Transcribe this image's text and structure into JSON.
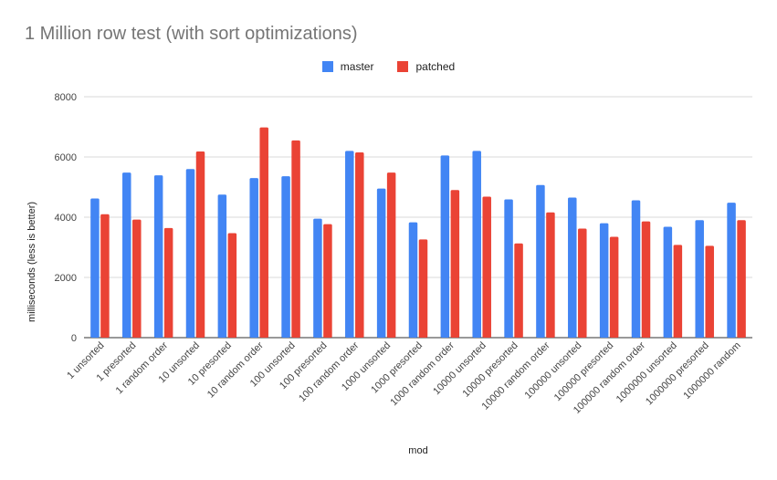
{
  "chart_data": {
    "type": "bar",
    "title": "1 Million row test (with sort optimizations)",
    "xlabel": "mod",
    "ylabel": "milliseconds (less is better)",
    "ylim": [
      0,
      8000
    ],
    "yticks": [
      0,
      2000,
      4000,
      6000,
      8000
    ],
    "grid": true,
    "legend_position": "top",
    "categories": [
      "1 unsorted",
      "1 presorted",
      "1 random order",
      "10 unsorted",
      "10 presorted",
      "10 random order",
      "100 unsorted",
      "100 presorted",
      "100 random order",
      "1000 unsorted",
      "1000 presorted",
      "1000 random order",
      "10000 unsorted",
      "10000 presorted",
      "10000 random order",
      "100000 unsorted",
      "100000 presorted",
      "100000 random order",
      "1000000 unsorted",
      "1000000 presorted",
      "1000000 random"
    ],
    "series": [
      {
        "name": "master",
        "color": "#4285f4",
        "values": [
          4620,
          5480,
          5390,
          5600,
          4750,
          5300,
          5360,
          3950,
          6200,
          4950,
          3830,
          6050,
          6200,
          4590,
          5070,
          4650,
          3800,
          4560,
          3680,
          3900,
          4480
        ]
      },
      {
        "name": "patched",
        "color": "#ea4335",
        "values": [
          4100,
          3920,
          3640,
          6180,
          3470,
          6980,
          6550,
          3770,
          6150,
          5480,
          3260,
          4900,
          4680,
          3130,
          4160,
          3620,
          3350,
          3860,
          3080,
          3050,
          3900
        ]
      }
    ]
  }
}
